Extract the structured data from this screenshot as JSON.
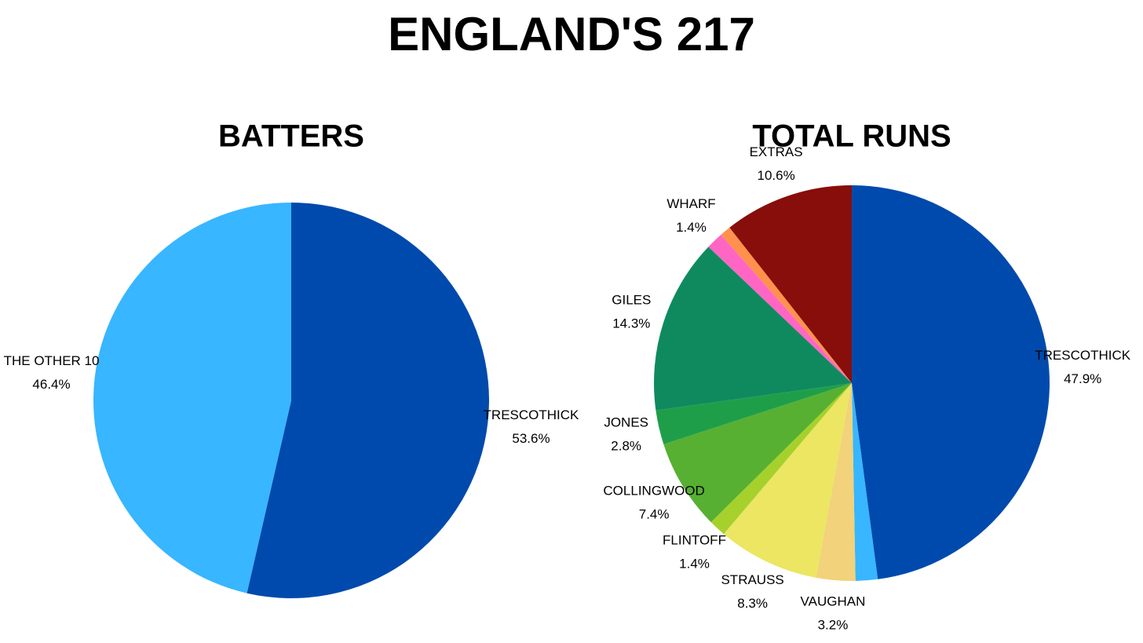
{
  "title": "ENGLAND'S 217",
  "chart_data": [
    {
      "type": "pie",
      "title": "BATTERS",
      "categories": [
        "TRESCOTHICK",
        "THE OTHER 10"
      ],
      "values": [
        53.6,
        46.4
      ],
      "value_labels": [
        "53.6%",
        "46.4%"
      ],
      "colors": [
        "#004aad",
        "#38b6ff"
      ]
    },
    {
      "type": "pie",
      "title": "TOTAL RUNS",
      "categories": [
        "TRESCOTHICK",
        null,
        "VAUGHAN",
        "STRAUSS",
        "FLINTOFF",
        "COLLINGWOOD",
        "JONES",
        "GILES",
        "WHARF",
        null,
        "EXTRAS"
      ],
      "values": [
        47.9,
        1.8,
        3.2,
        8.3,
        1.4,
        7.4,
        2.8,
        14.3,
        1.4,
        0.9,
        10.6
      ],
      "value_labels": [
        "47.9%",
        null,
        "3.2%",
        "8.3%",
        "1.4%",
        "7.4%",
        "2.8%",
        "14.3%",
        "1.4%",
        null,
        "10.6%"
      ],
      "colors": [
        "#004aad",
        "#38b6ff",
        "#f2d27a",
        "#ece663",
        "#a6d12c",
        "#57b031",
        "#1f9e4a",
        "#0f8a5f",
        "#ff66c4",
        "#ff914d",
        "#870e0a"
      ]
    }
  ]
}
